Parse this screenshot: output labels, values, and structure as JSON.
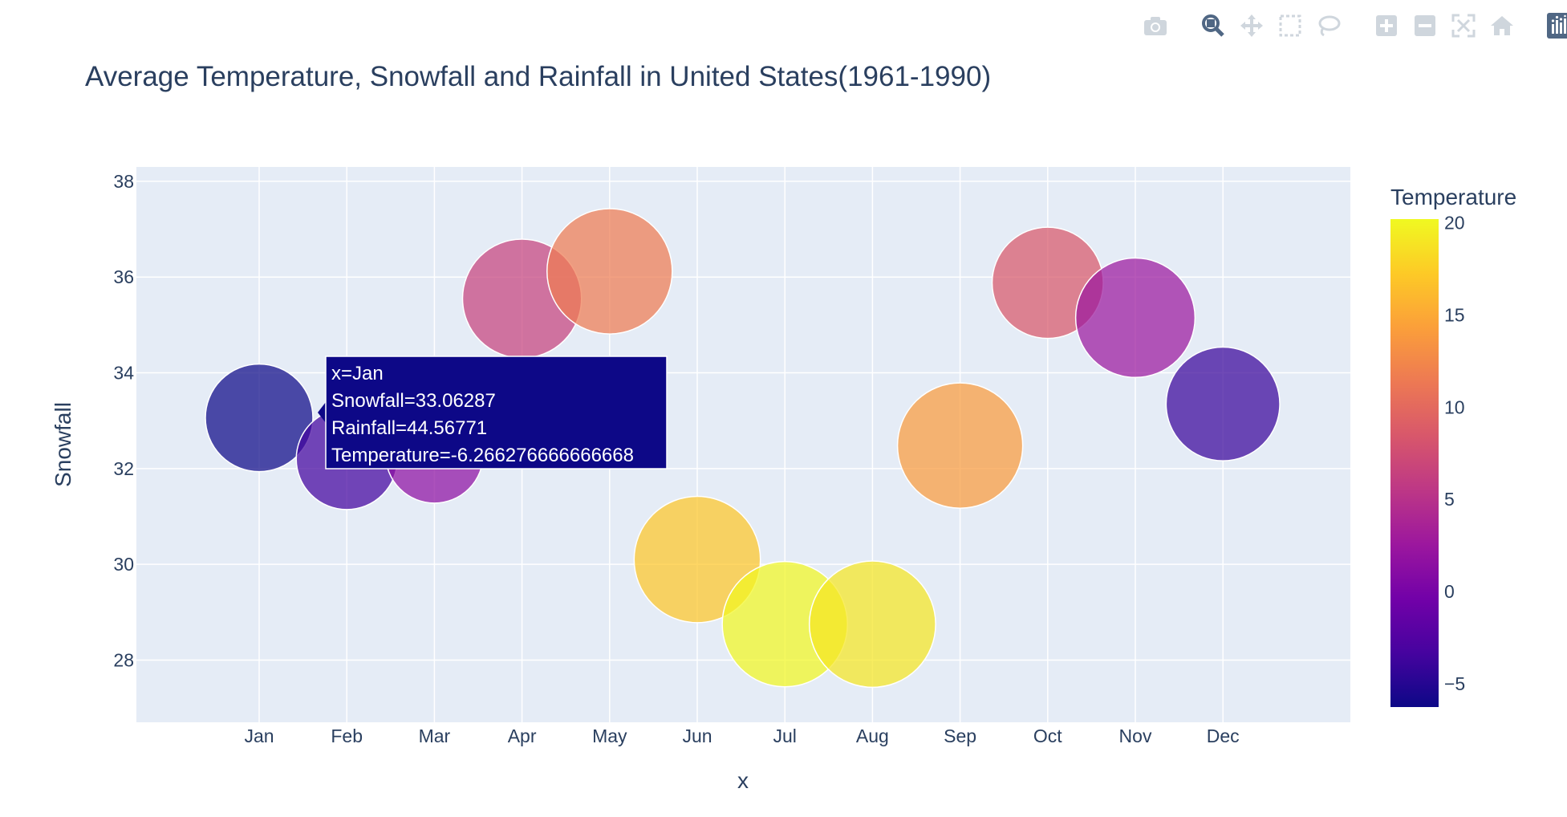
{
  "chart_data": {
    "type": "scatter",
    "title": "Average Temperature, Snowfall and Rainfall in United States(1961-1990)",
    "xlabel": "x",
    "ylabel": "Snowfall",
    "colorbar_title": "Temperature",
    "categories": [
      "Jan",
      "Feb",
      "Mar",
      "Apr",
      "May",
      "Jun",
      "Jul",
      "Aug",
      "Sep",
      "Oct",
      "Nov",
      "Dec"
    ],
    "snowfall": [
      33.06,
      32.2,
      32.3,
      35.55,
      36.12,
      30.1,
      28.75,
      28.75,
      32.48,
      35.88,
      35.15,
      33.35
    ],
    "rainfall": [
      44.57,
      41.5,
      39.9,
      50.0,
      53.0,
      53.5,
      53.0,
      53.5,
      53.0,
      46.3,
      50.2,
      47.5
    ],
    "temperature": [
      -6.27,
      -3.5,
      1.5,
      6.5,
      11.5,
      17.0,
      20.0,
      19.0,
      14.0,
      8.5,
      2.5,
      -4.0
    ],
    "ylim": [
      26.7,
      38.3
    ],
    "yticks": [
      28,
      30,
      32,
      34,
      36,
      38
    ],
    "colorbar_range": [
      -6.27,
      20.2
    ],
    "colorbar_ticks": [
      -5,
      0,
      5,
      10,
      15,
      20
    ],
    "colorscale": [
      "#0d0887",
      "#46039f",
      "#7201a8",
      "#9c179e",
      "#bd3786",
      "#d8576b",
      "#ed7953",
      "#fb9f3a",
      "#fdca26",
      "#f0f921"
    ],
    "grid": true,
    "hover": {
      "lines": [
        "x=Jan",
        "Snowfall=33.06287",
        "Rainfall=44.56771",
        "Temperature=-6.266276666666668"
      ],
      "bg_color": "#0d0887"
    }
  },
  "colors": {
    "plot_bg": "#e5ecf6",
    "grid": "#ffffff",
    "text": "#2a3f5f",
    "modebar_icon": "#cfd6dd",
    "modebar_active": "#506784"
  },
  "modebar": [
    "camera-icon",
    "zoom-icon",
    "pan-icon",
    "box-select-icon",
    "lasso-icon",
    "zoom-in-icon",
    "zoom-out-icon",
    "autoscale-icon",
    "reset-axes-icon",
    "plotly-logo-icon"
  ]
}
